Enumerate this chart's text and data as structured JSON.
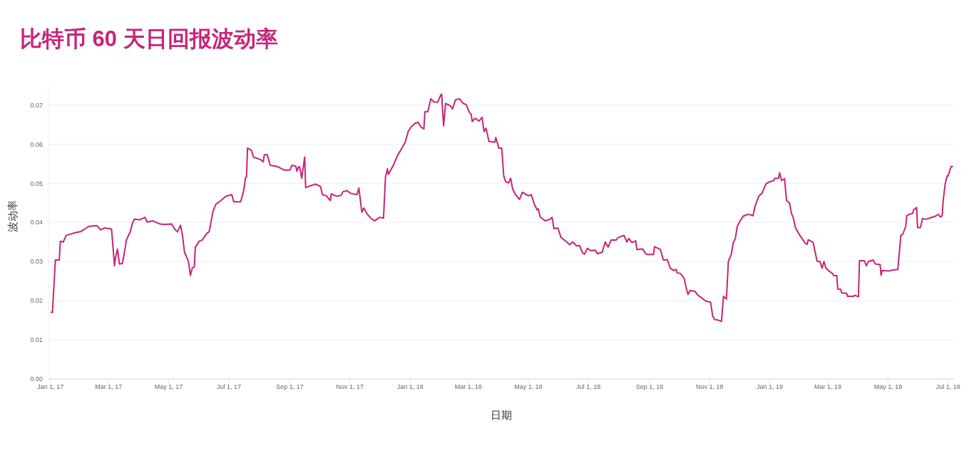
{
  "chart_data": {
    "type": "line",
    "title": "比特币 60 天日回报波动率",
    "xlabel": "日期",
    "ylabel": "波动率",
    "color": "#c8237a",
    "marker": "none",
    "line_style": "solid",
    "grid": "y",
    "legend": false,
    "xlim": [
      "2016-12-30",
      "2019-07-07"
    ],
    "ylim": [
      0,
      0.075
    ],
    "xticks": [
      {
        "value": "2017-01-01",
        "label": "Jan 1, 17"
      },
      {
        "value": "2017-03-01",
        "label": "Mar 1, 17"
      },
      {
        "value": "2017-05-01",
        "label": "May 1, 17"
      },
      {
        "value": "2017-07-01",
        "label": "Jul 1, 17"
      },
      {
        "value": "2017-09-01",
        "label": "Sep 1, 17"
      },
      {
        "value": "2017-11-01",
        "label": "Nov 1, 17"
      },
      {
        "value": "2018-01-01",
        "label": "Jan 1, 18"
      },
      {
        "value": "2018-03-01",
        "label": "Mar 1, 18"
      },
      {
        "value": "2018-05-01",
        "label": "May 1, 18"
      },
      {
        "value": "2018-07-01",
        "label": "Jul 1, 18"
      },
      {
        "value": "2018-09-01",
        "label": "Sep 1, 18"
      },
      {
        "value": "2018-11-01",
        "label": "Nov 1, 18"
      },
      {
        "value": "2019-01-01",
        "label": "Jan 1, 19"
      },
      {
        "value": "2019-03-01",
        "label": "Mar 1, 19"
      },
      {
        "value": "2019-05-01",
        "label": "May 1, 19"
      },
      {
        "value": "2019-07-01",
        "label": "Jul 1, 19"
      }
    ],
    "yticks": [
      {
        "value": 0,
        "label": "0.00"
      },
      {
        "value": 0.01,
        "label": "0.01"
      },
      {
        "value": 0.02,
        "label": "0.02"
      },
      {
        "value": 0.03,
        "label": "0.03"
      },
      {
        "value": 0.04,
        "label": "0.04"
      },
      {
        "value": 0.05,
        "label": "0.05"
      },
      {
        "value": 0.06,
        "label": "0.06"
      },
      {
        "value": 0.07,
        "label": "0.07"
      }
    ],
    "x": [
      "2017-01-01",
      "2017-01-03",
      "2017-01-06",
      "2017-01-10",
      "2017-01-11",
      "2017-01-14",
      "2017-01-17",
      "2017-01-25",
      "2017-02-01",
      "2017-02-09",
      "2017-02-17",
      "2017-02-21",
      "2017-02-25",
      "2017-03-04",
      "2017-03-07",
      "2017-03-08",
      "2017-03-10",
      "2017-03-12",
      "2017-03-15",
      "2017-03-18",
      "2017-03-19",
      "2017-03-23",
      "2017-03-25",
      "2017-03-27",
      "2017-04-02",
      "2017-04-07",
      "2017-04-09",
      "2017-04-15",
      "2017-04-22",
      "2017-04-27",
      "2017-05-04",
      "2017-05-07",
      "2017-05-10",
      "2017-05-13",
      "2017-05-15",
      "2017-05-17",
      "2017-05-21",
      "2017-05-23",
      "2017-05-25",
      "2017-05-27",
      "2017-05-28",
      "2017-06-01",
      "2017-06-04",
      "2017-06-09",
      "2017-06-11",
      "2017-06-13",
      "2017-06-15",
      "2017-06-18",
      "2017-06-23",
      "2017-06-28",
      "2017-07-04",
      "2017-07-06",
      "2017-07-13",
      "2017-07-16",
      "2017-07-18",
      "2017-07-19",
      "2017-07-20",
      "2017-07-24",
      "2017-07-26",
      "2017-08-02",
      "2017-08-05",
      "2017-08-06",
      "2017-08-09",
      "2017-08-12",
      "2017-08-19",
      "2017-08-26",
      "2017-09-01",
      "2017-09-03",
      "2017-09-07",
      "2017-09-08",
      "2017-09-10",
      "2017-09-11",
      "2017-09-13",
      "2017-09-16",
      "2017-09-17",
      "2017-09-21",
      "2017-09-27",
      "2017-10-02",
      "2017-10-04",
      "2017-10-08",
      "2017-10-12",
      "2017-10-13",
      "2017-10-18",
      "2017-10-23",
      "2017-10-25",
      "2017-10-29",
      "2017-11-02",
      "2017-11-08",
      "2017-11-10",
      "2017-11-13",
      "2017-11-15",
      "2017-11-18",
      "2017-11-22",
      "2017-11-26",
      "2017-12-01",
      "2017-12-05",
      "2017-12-07",
      "2017-12-09",
      "2017-12-10",
      "2017-12-15",
      "2017-12-19",
      "2017-12-23",
      "2017-12-27",
      "2017-12-30",
      "2018-01-02",
      "2018-01-06",
      "2018-01-09",
      "2018-01-12",
      "2018-01-15",
      "2018-01-16",
      "2018-01-19",
      "2018-01-22",
      "2018-01-25",
      "2018-01-29",
      "2018-02-01",
      "2018-02-02",
      "2018-02-04",
      "2018-02-06",
      "2018-02-11",
      "2018-02-13",
      "2018-02-16",
      "2018-02-20",
      "2018-02-24",
      "2018-02-27",
      "2018-03-02",
      "2018-03-04",
      "2018-03-05",
      "2018-03-08",
      "2018-03-12",
      "2018-03-15",
      "2018-03-17",
      "2018-03-19",
      "2018-03-22",
      "2018-03-28",
      "2018-03-29",
      "2018-04-01",
      "2018-04-04",
      "2018-04-06",
      "2018-04-08",
      "2018-04-11",
      "2018-04-13",
      "2018-04-15",
      "2018-04-18",
      "2018-04-22",
      "2018-04-25",
      "2018-05-01",
      "2018-05-04",
      "2018-05-07",
      "2018-05-10",
      "2018-05-11",
      "2018-05-13",
      "2018-05-18",
      "2018-05-23",
      "2018-05-25",
      "2018-05-27",
      "2018-05-31",
      "2018-06-03",
      "2018-06-09",
      "2018-06-12",
      "2018-06-15",
      "2018-06-19",
      "2018-06-22",
      "2018-06-25",
      "2018-06-27",
      "2018-06-30",
      "2018-07-03",
      "2018-07-08",
      "2018-07-10",
      "2018-07-15",
      "2018-07-18",
      "2018-07-21",
      "2018-07-24",
      "2018-07-29",
      "2018-07-31",
      "2018-08-06",
      "2018-08-09",
      "2018-08-11",
      "2018-08-14",
      "2018-08-16",
      "2018-08-18",
      "2018-08-19",
      "2018-08-25",
      "2018-08-28",
      "2018-08-30",
      "2018-09-05",
      "2018-09-06",
      "2018-09-12",
      "2018-09-15",
      "2018-09-19",
      "2018-09-22",
      "2018-09-26",
      "2018-09-28",
      "2018-09-29",
      "2018-10-02",
      "2018-10-06",
      "2018-10-08",
      "2018-10-10",
      "2018-10-12",
      "2018-10-17",
      "2018-10-20",
      "2018-10-24",
      "2018-10-28",
      "2018-11-02",
      "2018-11-04",
      "2018-11-06",
      "2018-11-10",
      "2018-11-13",
      "2018-11-15",
      "2018-11-18",
      "2018-11-20",
      "2018-11-23",
      "2018-11-25",
      "2018-11-27",
      "2018-11-29",
      "2018-12-02",
      "2018-12-05",
      "2018-12-09",
      "2018-12-12",
      "2018-12-15",
      "2018-12-17",
      "2018-12-21",
      "2018-12-24",
      "2018-12-28",
      "2018-12-31",
      "2019-01-05",
      "2019-01-06",
      "2019-01-10",
      "2019-01-11",
      "2019-01-13",
      "2019-01-16",
      "2019-01-18",
      "2019-01-21",
      "2019-01-23",
      "2019-01-25",
      "2019-01-27",
      "2019-01-30",
      "2019-02-03",
      "2019-02-06",
      "2019-02-08",
      "2019-02-09",
      "2019-02-14",
      "2019-02-16",
      "2019-02-18",
      "2019-02-21",
      "2019-02-23",
      "2019-02-25",
      "2019-02-27",
      "2019-03-03",
      "2019-03-05",
      "2019-03-07",
      "2019-03-10",
      "2019-03-11",
      "2019-03-14",
      "2019-03-15",
      "2019-03-20",
      "2019-03-21",
      "2019-03-27",
      "2019-03-28",
      "2019-04-01",
      "2019-04-02",
      "2019-04-07",
      "2019-04-09",
      "2019-04-11",
      "2019-04-16",
      "2019-04-18",
      "2019-04-23",
      "2019-04-24",
      "2019-04-25",
      "2019-05-02",
      "2019-05-05",
      "2019-05-11",
      "2019-05-14",
      "2019-05-16",
      "2019-05-19",
      "2019-05-20",
      "2019-05-23",
      "2019-05-26",
      "2019-05-27",
      "2019-05-30",
      "2019-05-31",
      "2019-06-03",
      "2019-06-05",
      "2019-06-08",
      "2019-06-12",
      "2019-06-18",
      "2019-06-21",
      "2019-06-23",
      "2019-06-25",
      "2019-06-26",
      "2019-06-28",
      "2019-06-30",
      "2019-07-01",
      "2019-07-04",
      "2019-07-06"
    ],
    "values": [
      0.017,
      0.017,
      0.0304,
      0.0304,
      0.0352,
      0.035,
      0.0367,
      0.0373,
      0.0377,
      0.039,
      0.0392,
      0.0381,
      0.0386,
      0.0383,
      0.0289,
      0.031,
      0.0332,
      0.0294,
      0.0295,
      0.0337,
      0.0355,
      0.0376,
      0.0396,
      0.0408,
      0.0407,
      0.0413,
      0.0401,
      0.0404,
      0.0396,
      0.0395,
      0.0396,
      0.0383,
      0.0376,
      0.0393,
      0.0367,
      0.0324,
      0.0301,
      0.0265,
      0.0284,
      0.0286,
      0.0337,
      0.0352,
      0.0355,
      0.0373,
      0.0376,
      0.0402,
      0.0429,
      0.0447,
      0.0456,
      0.0467,
      0.0471,
      0.0453,
      0.0453,
      0.048,
      0.0515,
      0.0516,
      0.059,
      0.0584,
      0.0567,
      0.0561,
      0.0555,
      0.0573,
      0.0573,
      0.0546,
      0.0543,
      0.0534,
      0.0534,
      0.0546,
      0.0544,
      0.0531,
      0.0543,
      0.0541,
      0.0513,
      0.0567,
      0.0489,
      0.0493,
      0.0498,
      0.0492,
      0.0471,
      0.0468,
      0.0456,
      0.0473,
      0.0467,
      0.0469,
      0.0479,
      0.0481,
      0.0474,
      0.0471,
      0.0488,
      0.0426,
      0.0437,
      0.0423,
      0.0411,
      0.0404,
      0.0413,
      0.0411,
      0.0516,
      0.0537,
      0.0523,
      0.0546,
      0.057,
      0.0587,
      0.0605,
      0.0632,
      0.0644,
      0.0653,
      0.0656,
      0.0644,
      0.0639,
      0.0683,
      0.0683,
      0.0716,
      0.0708,
      0.0707,
      0.0725,
      0.0728,
      0.0647,
      0.0704,
      0.0698,
      0.069,
      0.0713,
      0.0716,
      0.0704,
      0.0701,
      0.0682,
      0.0676,
      0.0658,
      0.0666,
      0.0659,
      0.0669,
      0.0632,
      0.0641,
      0.0607,
      0.0605,
      0.0617,
      0.059,
      0.059,
      0.0519,
      0.0504,
      0.0501,
      0.0513,
      0.0486,
      0.0471,
      0.0459,
      0.0477,
      0.0468,
      0.0471,
      0.0447,
      0.0432,
      0.0435,
      0.0414,
      0.0404,
      0.0408,
      0.0413,
      0.0384,
      0.0386,
      0.0362,
      0.035,
      0.0343,
      0.035,
      0.034,
      0.0341,
      0.0322,
      0.0319,
      0.0334,
      0.0328,
      0.0329,
      0.032,
      0.0324,
      0.035,
      0.0337,
      0.0355,
      0.0355,
      0.0361,
      0.0367,
      0.035,
      0.0359,
      0.0349,
      0.035,
      0.0353,
      0.0331,
      0.0332,
      0.032,
      0.0318,
      0.0318,
      0.0338,
      0.0331,
      0.0304,
      0.0305,
      0.0283,
      0.0277,
      0.028,
      0.0271,
      0.027,
      0.0258,
      0.0235,
      0.0216,
      0.0226,
      0.0224,
      0.0214,
      0.0207,
      0.0199,
      0.0196,
      0.0161,
      0.0152,
      0.015,
      0.0147,
      0.0211,
      0.0204,
      0.0301,
      0.0319,
      0.0349,
      0.0358,
      0.039,
      0.0404,
      0.0416,
      0.042,
      0.042,
      0.0417,
      0.0441,
      0.0468,
      0.0474,
      0.0498,
      0.0503,
      0.0507,
      0.0513,
      0.0513,
      0.0527,
      0.0507,
      0.0512,
      0.0456,
      0.045,
      0.0423,
      0.0411,
      0.0387,
      0.0373,
      0.0358,
      0.0347,
      0.0344,
      0.0356,
      0.0349,
      0.0325,
      0.0301,
      0.03,
      0.0283,
      0.03,
      0.0283,
      0.0274,
      0.0271,
      0.0264,
      0.0264,
      0.023,
      0.0229,
      0.022,
      0.0219,
      0.0211,
      0.0211,
      0.0214,
      0.021,
      0.0302,
      0.0302,
      0.0289,
      0.03,
      0.0304,
      0.0294,
      0.0292,
      0.0265,
      0.0277,
      0.0276,
      0.0278,
      0.028,
      0.0367,
      0.037,
      0.039,
      0.0417,
      0.0421,
      0.0423,
      0.0432,
      0.0438,
      0.0387,
      0.0387,
      0.041,
      0.0408,
      0.0411,
      0.0416,
      0.0421,
      0.0414,
      0.0417,
      0.0456,
      0.0498,
      0.0519,
      0.0519,
      0.0543,
      0.0543
    ]
  }
}
